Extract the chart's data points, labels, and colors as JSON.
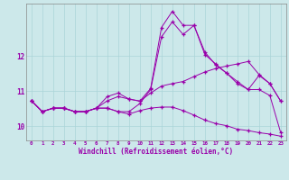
{
  "xlabel": "Windchill (Refroidissement éolien,°C)",
  "background_color": "#cce8ea",
  "grid_color": "#aad4d8",
  "line_color": "#9900aa",
  "x_hours": [
    0,
    1,
    2,
    3,
    4,
    5,
    6,
    7,
    8,
    9,
    10,
    11,
    12,
    13,
    14,
    15,
    16,
    17,
    18,
    19,
    20,
    21,
    22,
    23
  ],
  "line1_up": [
    10.73,
    10.42,
    10.52,
    10.52,
    10.42,
    10.42,
    10.52,
    10.52,
    10.42,
    10.42,
    10.65,
    11.05,
    12.55,
    12.98,
    12.62,
    12.88,
    12.05,
    11.78,
    11.52,
    11.28,
    11.05,
    11.05,
    10.88,
    9.82
  ],
  "line2_spike": [
    10.73,
    10.42,
    10.52,
    10.52,
    10.42,
    10.42,
    10.52,
    10.73,
    10.85,
    10.78,
    10.72,
    11.08,
    12.82,
    13.28,
    12.88,
    12.88,
    12.12,
    11.75,
    11.52,
    11.22,
    11.05,
    11.45,
    11.22,
    10.72
  ],
  "line3_mid": [
    10.73,
    10.42,
    10.52,
    10.52,
    10.42,
    10.42,
    10.52,
    10.85,
    10.95,
    10.78,
    10.72,
    10.95,
    11.15,
    11.22,
    11.28,
    11.42,
    11.55,
    11.65,
    11.72,
    11.78,
    11.85,
    11.48,
    11.22,
    10.72
  ],
  "line4_low": [
    10.73,
    10.42,
    10.52,
    10.52,
    10.42,
    10.42,
    10.52,
    10.52,
    10.42,
    10.35,
    10.45,
    10.52,
    10.55,
    10.55,
    10.45,
    10.32,
    10.18,
    10.08,
    10.02,
    9.92,
    9.88,
    9.82,
    9.78,
    9.72
  ],
  "ylim": [
    9.6,
    13.5
  ],
  "yticks": [
    10,
    11,
    12
  ],
  "xlim": [
    -0.5,
    23.5
  ]
}
